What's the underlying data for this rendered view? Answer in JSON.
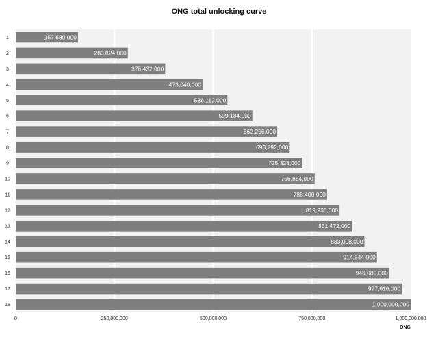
{
  "chart_data": {
    "type": "bar",
    "orientation": "horizontal",
    "title": "ONG total unlocking curve",
    "xlabel": "ONG",
    "ylabel": "",
    "xlim": [
      0,
      1000000000
    ],
    "x_ticks": [
      "0",
      "250,000,000",
      "500,000,000",
      "750,000,000",
      "1,000,000,000"
    ],
    "x_tick_values": [
      0,
      250000000,
      500000000,
      750000000,
      1000000000
    ],
    "categories": [
      "1",
      "2",
      "3",
      "4",
      "5",
      "6",
      "7",
      "8",
      "9",
      "10",
      "11",
      "12",
      "13",
      "14",
      "15",
      "16",
      "17",
      "18"
    ],
    "values": [
      157680000,
      283824000,
      378432000,
      473040000,
      536112000,
      599184000,
      662256000,
      693792000,
      725328000,
      756864000,
      788400000,
      819936000,
      851472000,
      883008000,
      914544000,
      946080000,
      977616000,
      1000000000
    ],
    "value_labels": [
      "157,680,000",
      "283,824,000",
      "378,432,000",
      "473,040,000",
      "536,112,000",
      "599,184,000",
      "662,256,000",
      "693,792,000",
      "725,328,000",
      "756,864,000",
      "788,400,000",
      "819,936,000",
      "851,472,000",
      "883,008,000",
      "914,544,000",
      "946,080,000",
      "977,616,000",
      "1,000,000,000"
    ],
    "grid": true,
    "colors": {
      "bar": "#7f7f7f",
      "panel": "#f2f2f2",
      "grid": "#ffffff",
      "label": "#ffffff"
    }
  }
}
